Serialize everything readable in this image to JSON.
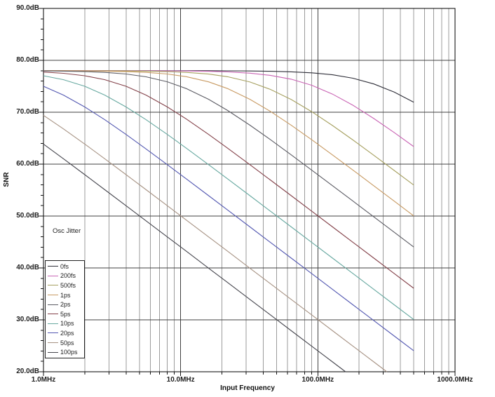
{
  "chart_data": {
    "type": "line",
    "title": "",
    "x_axis": {
      "label": "Input Frequency",
      "scale": "log",
      "unit": "MHz",
      "range_mhz": [
        1,
        1000
      ],
      "tick_values_mhz": [
        1,
        10,
        100,
        1000
      ],
      "tick_labels": [
        "1.0MHz",
        "10.0MHz",
        "100.0MHz",
        "1000.0MHz"
      ],
      "minor_gridlines": "log sub-decades 2-9, full height"
    },
    "y_axis": {
      "label": "SNR",
      "unit": "dB",
      "range_db": [
        20,
        90
      ],
      "major_tick_step_db": 10,
      "minor_tick_step_db": 2,
      "tick_values_db": [
        90,
        80,
        70,
        60,
        50,
        40,
        30,
        20
      ],
      "tick_labels": [
        "90.0dB",
        "80.0dB",
        "70.0dB",
        "60.0dB",
        "50.0dB",
        "40.0dB",
        "30.0dB",
        "20.0dB"
      ]
    },
    "legend": {
      "title": "Osc Jitter",
      "position": "inside-left",
      "entries": [
        "0fs",
        "200fs",
        "500fs",
        "1ps",
        "2ps",
        "5ps",
        "10ps",
        "20ps",
        "50ps",
        "100ps"
      ]
    },
    "reading_notes": {
      "snr_floor_db": 78,
      "curves_span_mhz": [
        1,
        500
      ],
      "rolloff": "-20dB/decade jitter-limited slope"
    },
    "grid_colors": {
      "major": "#404040",
      "minor": "#9b9b9b",
      "border": "#000000"
    },
    "series": [
      {
        "name": "0fs",
        "color": "#2e2e38",
        "points": [
          [
            1,
            78
          ],
          [
            1.4,
            78
          ],
          [
            2,
            78
          ],
          [
            2.8,
            78
          ],
          [
            4,
            78
          ],
          [
            5.6,
            78
          ],
          [
            8,
            78
          ],
          [
            11,
            78
          ],
          [
            16,
            78
          ],
          [
            22,
            77.97
          ],
          [
            32,
            77.95
          ],
          [
            45,
            77.89
          ],
          [
            64,
            77.79
          ],
          [
            90,
            77.59
          ],
          [
            128,
            77.21
          ],
          [
            180,
            76.55
          ],
          [
            256,
            75.45
          ],
          [
            360,
            73.88
          ],
          [
            500,
            71.92
          ]
        ]
      },
      {
        "name": "200fs",
        "color": "#c964b4",
        "points": [
          [
            1,
            78
          ],
          [
            1.4,
            78
          ],
          [
            2,
            78
          ],
          [
            2.8,
            78
          ],
          [
            4,
            78
          ],
          [
            5.6,
            77.98
          ],
          [
            8,
            77.97
          ],
          [
            11,
            77.94
          ],
          [
            16,
            77.88
          ],
          [
            22,
            77.77
          ],
          [
            32,
            77.53
          ],
          [
            45,
            77.11
          ],
          [
            64,
            76.36
          ],
          [
            90,
            75.2
          ],
          [
            128,
            73.48
          ],
          [
            180,
            71.35
          ],
          [
            256,
            68.79
          ],
          [
            360,
            66.1
          ],
          [
            500,
            63.38
          ]
        ]
      },
      {
        "name": "500fs",
        "color": "#a6a060",
        "points": [
          [
            1,
            78
          ],
          [
            1.4,
            78
          ],
          [
            2,
            77.99
          ],
          [
            2.8,
            77.98
          ],
          [
            4,
            77.96
          ],
          [
            5.6,
            77.92
          ],
          [
            8,
            77.83
          ],
          [
            11,
            77.68
          ],
          [
            16,
            77.35
          ],
          [
            22,
            76.84
          ],
          [
            32,
            75.82
          ],
          [
            45,
            74.41
          ],
          [
            64,
            72.44
          ],
          [
            90,
            70.12
          ],
          [
            128,
            67.43
          ],
          [
            180,
            64.66
          ],
          [
            256,
            61.7
          ],
          [
            360,
            58.79
          ],
          [
            500,
            55.97
          ]
        ]
      },
      {
        "name": "1ps",
        "color": "#c89a62",
        "points": [
          [
            1,
            77.99
          ],
          [
            1.4,
            77.98
          ],
          [
            2,
            77.96
          ],
          [
            2.8,
            77.92
          ],
          [
            4,
            77.83
          ],
          [
            5.6,
            77.67
          ],
          [
            8,
            77.36
          ],
          [
            11,
            76.85
          ],
          [
            16,
            75.85
          ],
          [
            22,
            74.55
          ],
          [
            32,
            72.48
          ],
          [
            45,
            70.17
          ],
          [
            64,
            67.49
          ],
          [
            90,
            64.72
          ],
          [
            128,
            61.77
          ],
          [
            180,
            58.86
          ],
          [
            256,
            55.82
          ],
          [
            360,
            52.88
          ],
          [
            500,
            50.03
          ]
        ]
      },
      {
        "name": "2ps",
        "color": "#5c5c64",
        "points": [
          [
            1,
            77.96
          ],
          [
            1.4,
            77.92
          ],
          [
            2,
            77.83
          ],
          [
            2.8,
            77.67
          ],
          [
            4,
            77.36
          ],
          [
            5.6,
            76.82
          ],
          [
            8,
            75.86
          ],
          [
            11,
            74.56
          ],
          [
            16,
            72.49
          ],
          [
            22,
            70.34
          ],
          [
            32,
            67.5
          ],
          [
            45,
            64.74
          ],
          [
            64,
            61.78
          ],
          [
            90,
            58.87
          ],
          [
            128,
            55.84
          ],
          [
            180,
            52.89
          ],
          [
            256,
            49.84
          ],
          [
            360,
            46.88
          ],
          [
            500,
            44.03
          ]
        ]
      },
      {
        "name": "5ps",
        "color": "#84424a",
        "points": [
          [
            1,
            77.74
          ],
          [
            1.4,
            77.5
          ],
          [
            2,
            77.03
          ],
          [
            2.8,
            76.27
          ],
          [
            4,
            75
          ],
          [
            5.6,
            73.3
          ],
          [
            8,
            71.02
          ],
          [
            11,
            68.69
          ],
          [
            16,
            65.71
          ],
          [
            22,
            63.07
          ],
          [
            32,
            59.89
          ],
          [
            45,
            56.96
          ],
          [
            64,
            53.92
          ],
          [
            90,
            50.96
          ],
          [
            128,
            47.91
          ],
          [
            180,
            44.95
          ],
          [
            256,
            41.89
          ],
          [
            360,
            38.93
          ],
          [
            500,
            36.08
          ]
        ]
      },
      {
        "name": "10ps",
        "color": "#68a9a1",
        "points": [
          [
            1,
            77.03
          ],
          [
            1.4,
            76.27
          ],
          [
            2,
            75
          ],
          [
            2.8,
            73.3
          ],
          [
            4,
            71.02
          ],
          [
            5.6,
            68.55
          ],
          [
            8,
            65.71
          ],
          [
            11,
            63.07
          ],
          [
            16,
            59.89
          ],
          [
            22,
            57.15
          ],
          [
            32,
            53.92
          ],
          [
            45,
            50.96
          ],
          [
            64,
            47.91
          ],
          [
            90,
            44.95
          ],
          [
            128,
            41.89
          ],
          [
            180,
            38.93
          ],
          [
            256,
            35.87
          ],
          [
            360,
            32.91
          ],
          [
            500,
            30.06
          ]
        ]
      },
      {
        "name": "20ps",
        "color": "#5459b2",
        "points": [
          [
            1,
            75
          ],
          [
            1.4,
            73.3
          ],
          [
            2,
            71.02
          ],
          [
            2.8,
            68.55
          ],
          [
            4,
            65.71
          ],
          [
            5.6,
            62.92
          ],
          [
            8,
            59.89
          ],
          [
            11,
            57.15
          ],
          [
            16,
            53.92
          ],
          [
            22,
            51.16
          ],
          [
            32,
            47.91
          ],
          [
            45,
            44.95
          ],
          [
            64,
            41.89
          ],
          [
            90,
            38.93
          ],
          [
            128,
            35.87
          ],
          [
            180,
            32.91
          ],
          [
            256,
            29.85
          ],
          [
            360,
            26.89
          ],
          [
            500,
            24.04
          ]
        ]
      },
      {
        "name": "50ps",
        "color": "#a79384",
        "points": [
          [
            1,
            69.41
          ],
          [
            1.4,
            66.79
          ],
          [
            2,
            63.87
          ],
          [
            2.8,
            61.03
          ],
          [
            4,
            57.97
          ],
          [
            5.6,
            55.07
          ],
          [
            8,
            51.98
          ],
          [
            11,
            49.22
          ],
          [
            16,
            45.97
          ],
          [
            22,
            43.21
          ],
          [
            32,
            39.95
          ],
          [
            45,
            36.99
          ],
          [
            64,
            33.93
          ],
          [
            90,
            30.97
          ],
          [
            128,
            27.91
          ],
          [
            180,
            24.95
          ],
          [
            256,
            21.89
          ],
          [
            318.3,
            20
          ]
        ]
      },
      {
        "name": "100ps",
        "color": "#47474f",
        "points": [
          [
            1,
            63.87
          ],
          [
            1.4,
            61.03
          ],
          [
            2,
            57.97
          ],
          [
            2.8,
            55.07
          ],
          [
            4,
            51.98
          ],
          [
            5.6,
            49.07
          ],
          [
            8,
            45.97
          ],
          [
            11,
            43.21
          ],
          [
            16,
            39.95
          ],
          [
            22,
            37.19
          ],
          [
            32,
            33.93
          ],
          [
            45,
            30.97
          ],
          [
            64,
            27.91
          ],
          [
            90,
            24.95
          ],
          [
            128,
            21.89
          ],
          [
            159.2,
            20
          ]
        ]
      }
    ]
  }
}
